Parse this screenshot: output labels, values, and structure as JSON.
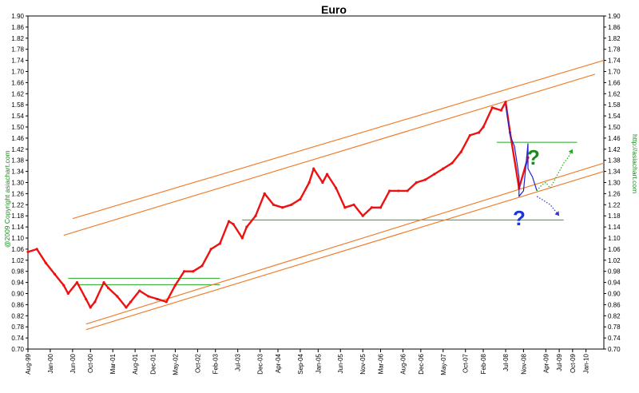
{
  "chart_data": {
    "type": "line",
    "title": "Euro",
    "ylim": [
      0.7,
      1.9
    ],
    "y_ticks": [
      "0.70",
      "0.74",
      "0.78",
      "0.82",
      "0.86",
      "0.90",
      "0.94",
      "0.98",
      "1.02",
      "1.06",
      "1.10",
      "1.14",
      "1.18",
      "1.22",
      "1.26",
      "1.30",
      "1.34",
      "1.38",
      "1.42",
      "1.46",
      "1.50",
      "1.54",
      "1.58",
      "1.62",
      "1.66",
      "1.70",
      "1.74",
      "1.78",
      "1.82",
      "1.86",
      "1.90"
    ],
    "x_ticks": [
      "Aug-99",
      "Jan-00",
      "Jun-00",
      "Oct-00",
      "Mar-01",
      "Aug-01",
      "Dec-01",
      "May-02",
      "Oct-02",
      "Feb-03",
      "Jul-03",
      "Dec-03",
      "Apr-04",
      "Sep-04",
      "Jan-05",
      "Jun-05",
      "Nov-05",
      "Mar-06",
      "Aug-06",
      "Dec-06",
      "May-07",
      "Oct-07",
      "Feb-08",
      "Jul-08",
      "Nov-08",
      "Apr-09",
      "Jul-09",
      "Oct-09",
      "Jan-10"
    ],
    "x_tick_dates": [
      "1999-08",
      "2000-01",
      "2000-06",
      "2000-10",
      "2001-03",
      "2001-08",
      "2001-12",
      "2002-05",
      "2002-10",
      "2003-02",
      "2003-07",
      "2003-12",
      "2004-04",
      "2004-09",
      "2005-01",
      "2005-06",
      "2005-11",
      "2006-03",
      "2006-08",
      "2006-12",
      "2007-05",
      "2007-10",
      "2008-02",
      "2008-07",
      "2008-11",
      "2009-04",
      "2009-07",
      "2009-10",
      "2010-01"
    ],
    "xlim": [
      "1999-08",
      "2010-05"
    ],
    "grid": false,
    "series": [
      {
        "color": "#ee1111",
        "x": [
          "1999-08",
          "1999-10",
          "1999-12",
          "2000-02",
          "2000-04",
          "2000-05",
          "2000-07",
          "2000-09",
          "2000-10",
          "2000-11",
          "2001-01",
          "2001-02",
          "2001-04",
          "2001-06",
          "2001-07",
          "2001-09",
          "2001-11",
          "2002-01",
          "2002-03",
          "2002-05",
          "2002-07",
          "2002-09",
          "2002-11",
          "2003-01",
          "2003-03",
          "2003-05",
          "2003-06",
          "2003-08",
          "2003-09",
          "2003-11",
          "2004-01",
          "2004-03",
          "2004-05",
          "2004-07",
          "2004-09",
          "2004-11",
          "2004-12",
          "2005-02",
          "2005-03",
          "2005-05",
          "2005-07",
          "2005-09",
          "2005-11",
          "2006-01",
          "2006-03",
          "2006-05",
          "2006-07",
          "2006-09",
          "2006-11",
          "2007-01",
          "2007-03",
          "2007-05",
          "2007-07",
          "2007-09",
          "2007-11",
          "2008-01",
          "2008-02",
          "2008-04",
          "2008-06",
          "2008-07",
          "2008-08",
          "2008-10",
          "2008-12"
        ],
        "values": [
          1.05,
          1.06,
          1.01,
          0.97,
          0.93,
          0.9,
          0.94,
          0.88,
          0.85,
          0.87,
          0.94,
          0.92,
          0.89,
          0.85,
          0.87,
          0.91,
          0.89,
          0.88,
          0.87,
          0.93,
          0.98,
          0.98,
          1.0,
          1.06,
          1.08,
          1.16,
          1.15,
          1.1,
          1.14,
          1.18,
          1.26,
          1.22,
          1.21,
          1.22,
          1.24,
          1.3,
          1.35,
          1.3,
          1.33,
          1.28,
          1.21,
          1.22,
          1.18,
          1.21,
          1.21,
          1.27,
          1.27,
          1.27,
          1.3,
          1.31,
          1.33,
          1.35,
          1.37,
          1.41,
          1.47,
          1.48,
          1.5,
          1.57,
          1.56,
          1.59,
          1.48,
          1.28,
          1.39
        ]
      },
      {
        "color": "#2222cc",
        "x": [
          "2008-07",
          "2008-08",
          "2008-09",
          "2008-10",
          "2008-10",
          "2008-11",
          "2008-12",
          "2008-12",
          "2009-01",
          "2009-02"
        ],
        "values": [
          1.58,
          1.47,
          1.43,
          1.32,
          1.25,
          1.27,
          1.44,
          1.35,
          1.32,
          1.27
        ]
      },
      {
        "style": "dotted",
        "color": "#22aa22",
        "x": [
          "2009-02",
          "2009-03",
          "2009-04",
          "2009-05",
          "2009-06",
          "2009-07",
          "2009-08",
          "2009-09",
          "2009-10"
        ],
        "values": [
          1.27,
          1.29,
          1.3,
          1.28,
          1.31,
          1.34,
          1.37,
          1.39,
          1.42
        ]
      },
      {
        "style": "dotted",
        "color": "#3333cc",
        "x": [
          "2009-02",
          "2009-03",
          "2009-04",
          "2009-05",
          "2009-06",
          "2009-07"
        ],
        "values": [
          1.25,
          1.24,
          1.23,
          1.22,
          1.2,
          1.18
        ]
      }
    ],
    "trend_channels": [
      {
        "color": "#f08030",
        "from": [
          "2000-06",
          1.17
        ],
        "to": [
          "2010-05",
          1.74
        ]
      },
      {
        "color": "#f08030",
        "from": [
          "2000-04",
          1.11
        ],
        "to": [
          "2010-03",
          1.69
        ]
      },
      {
        "color": "#f08030",
        "from": [
          "2000-09",
          0.79
        ],
        "to": [
          "2010-05",
          1.37
        ]
      },
      {
        "color": "#f08030",
        "from": [
          "2000-09",
          0.77
        ],
        "to": [
          "2010-05",
          1.34
        ]
      }
    ],
    "horizontal_levels": [
      {
        "color": "#22aa22",
        "value": 1.165,
        "from": "2003-08",
        "to": "2009-08"
      },
      {
        "color": "#22aa22",
        "value": 1.445,
        "from": "2008-05",
        "to": "2009-11"
      },
      {
        "color": "#22aa22",
        "value": 0.955,
        "from": "2000-05",
        "to": "2003-03"
      },
      {
        "color": "#22aa22",
        "value": 0.932,
        "from": "2000-07",
        "to": "2003-03"
      }
    ],
    "annotations": [
      {
        "text": "?",
        "color": "#1a8a1a"
      },
      {
        "text": "?",
        "color": "#1a33dd"
      }
    ]
  },
  "side_labels": {
    "left": "@2009 Copyright asiachart.com",
    "right": "http://asiachart.com"
  }
}
